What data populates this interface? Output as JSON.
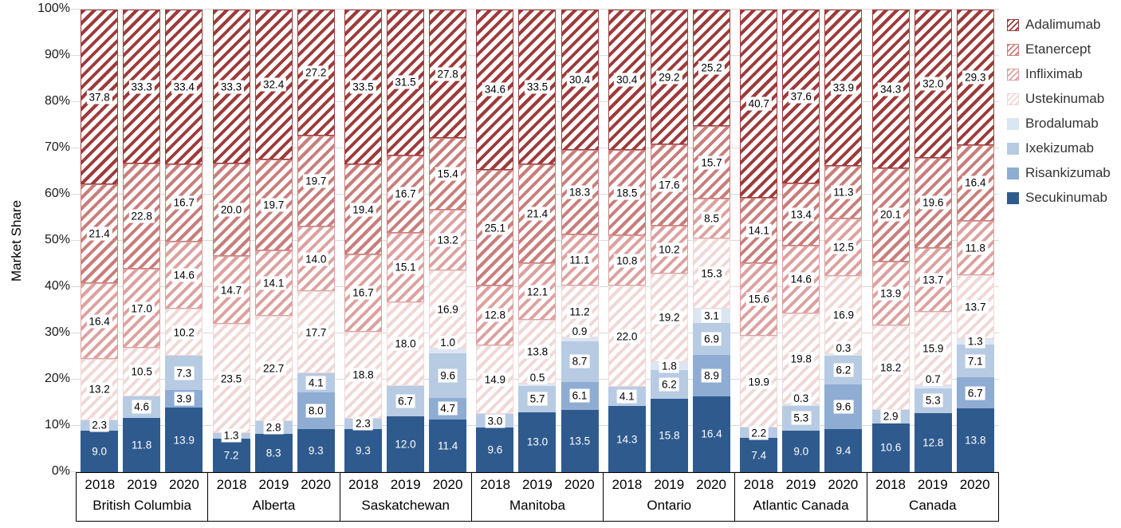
{
  "chart_data": {
    "type": "bar",
    "stacked": true,
    "orientation": "vertical",
    "ylabel": "Market Share",
    "ylim": [
      0,
      100
    ],
    "y_ticks": [
      "0%",
      "10%",
      "20%",
      "30%",
      "40%",
      "50%",
      "60%",
      "70%",
      "80%",
      "90%",
      "100%"
    ],
    "grid": "horizontal",
    "legend_position": "right",
    "legend": [
      "Adalimumab",
      "Etanercept",
      "Infliximab",
      "Ustekinumab",
      "Brodalumab",
      "Ixekizumab",
      "Risankizumab",
      "Secukinumab"
    ],
    "series_styles": {
      "Adalimumab": {
        "color": "#9e3b3b",
        "pattern": "hatch"
      },
      "Etanercept": {
        "color": "#c97e7b",
        "pattern": "hatch"
      },
      "Infliximab": {
        "color": "#dda19f",
        "pattern": "hatch"
      },
      "Ustekinumab": {
        "color": "#f0d8d7",
        "pattern": "hatch"
      },
      "Brodalumab": {
        "color": "#dce6f2",
        "pattern": "solid"
      },
      "Ixekizumab": {
        "color": "#b7cbe3",
        "pattern": "solid"
      },
      "Risankizumab": {
        "color": "#8facd3",
        "pattern": "solid"
      },
      "Secukinumab": {
        "color": "#2f5a8e",
        "pattern": "solid"
      }
    },
    "groups": [
      {
        "label": "British Columbia",
        "bars": [
          {
            "year": "2018",
            "segments": [
              [
                "Secukinumab",
                9.0
              ],
              [
                "Ixekizumab",
                2.3
              ],
              [
                "Ustekinumab",
                13.2
              ],
              [
                "Infliximab",
                16.4
              ],
              [
                "Etanercept",
                21.4
              ],
              [
                "Adalimumab",
                37.8
              ]
            ]
          },
          {
            "year": "2019",
            "segments": [
              [
                "Secukinumab",
                11.8
              ],
              [
                "Ixekizumab",
                4.6
              ],
              [
                "Ustekinumab",
                10.5
              ],
              [
                "Infliximab",
                17.0
              ],
              [
                "Etanercept",
                22.8
              ],
              [
                "Adalimumab",
                33.3
              ]
            ]
          },
          {
            "year": "2020",
            "segments": [
              [
                "Secukinumab",
                13.9
              ],
              [
                "Risankizumab",
                3.9
              ],
              [
                "Ixekizumab",
                7.3
              ],
              [
                "Ustekinumab",
                10.2
              ],
              [
                "Infliximab",
                14.6
              ],
              [
                "Etanercept",
                16.7
              ],
              [
                "Adalimumab",
                33.4
              ]
            ]
          }
        ]
      },
      {
        "label": "Alberta",
        "bars": [
          {
            "year": "2018",
            "segments": [
              [
                "Secukinumab",
                7.2
              ],
              [
                "Ixekizumab",
                1.3
              ],
              [
                "Ustekinumab",
                23.5
              ],
              [
                "Infliximab",
                14.7
              ],
              [
                "Etanercept",
                20.0
              ],
              [
                "Adalimumab",
                33.3
              ]
            ]
          },
          {
            "year": "2019",
            "segments": [
              [
                "Secukinumab",
                8.3
              ],
              [
                "Ixekizumab",
                2.8
              ],
              [
                "Ustekinumab",
                22.7
              ],
              [
                "Infliximab",
                14.1
              ],
              [
                "Etanercept",
                19.7
              ],
              [
                "Adalimumab",
                32.4
              ]
            ]
          },
          {
            "year": "2020",
            "segments": [
              [
                "Secukinumab",
                9.3
              ],
              [
                "Risankizumab",
                8.0
              ],
              [
                "Ixekizumab",
                4.1
              ],
              [
                "Ustekinumab",
                17.7
              ],
              [
                "Infliximab",
                14.0
              ],
              [
                "Etanercept",
                19.7
              ],
              [
                "Adalimumab",
                27.2
              ]
            ]
          }
        ]
      },
      {
        "label": "Saskatchewan",
        "bars": [
          {
            "year": "2018",
            "segments": [
              [
                "Secukinumab",
                9.3
              ],
              [
                "Ixekizumab",
                2.3
              ],
              [
                "Ustekinumab",
                18.8
              ],
              [
                "Infliximab",
                16.7
              ],
              [
                "Etanercept",
                19.4
              ],
              [
                "Adalimumab",
                33.5
              ]
            ]
          },
          {
            "year": "2019",
            "segments": [
              [
                "Secukinumab",
                12.0
              ],
              [
                "Ixekizumab",
                6.7
              ],
              [
                "Ustekinumab",
                18.0
              ],
              [
                "Infliximab",
                15.1
              ],
              [
                "Etanercept",
                16.7
              ],
              [
                "Adalimumab",
                31.5
              ]
            ]
          },
          {
            "year": "2020",
            "segments": [
              [
                "Secukinumab",
                11.4
              ],
              [
                "Risankizumab",
                4.7
              ],
              [
                "Ixekizumab",
                9.6
              ],
              [
                "Brodalumab",
                1.0
              ],
              [
                "Ustekinumab",
                16.9
              ],
              [
                "Infliximab",
                13.2
              ],
              [
                "Etanercept",
                15.4
              ],
              [
                "Adalimumab",
                27.8
              ]
            ]
          }
        ]
      },
      {
        "label": "Manitoba",
        "bars": [
          {
            "year": "2018",
            "segments": [
              [
                "Secukinumab",
                9.6
              ],
              [
                "Ixekizumab",
                3.0
              ],
              [
                "Ustekinumab",
                14.9
              ],
              [
                "Infliximab",
                12.8
              ],
              [
                "Etanercept",
                25.1
              ],
              [
                "Adalimumab",
                34.6
              ]
            ]
          },
          {
            "year": "2019",
            "segments": [
              [
                "Secukinumab",
                13.0
              ],
              [
                "Ixekizumab",
                5.7
              ],
              [
                "Brodalumab",
                0.5
              ],
              [
                "Ustekinumab",
                13.8
              ],
              [
                "Infliximab",
                12.1
              ],
              [
                "Etanercept",
                21.4
              ],
              [
                "Adalimumab",
                33.5
              ]
            ]
          },
          {
            "year": "2020",
            "segments": [
              [
                "Secukinumab",
                13.5
              ],
              [
                "Risankizumab",
                6.1
              ],
              [
                "Ixekizumab",
                8.7
              ],
              [
                "Brodalumab",
                0.9
              ],
              [
                "Ustekinumab",
                11.2
              ],
              [
                "Infliximab",
                11.1
              ],
              [
                "Etanercept",
                18.3
              ],
              [
                "Adalimumab",
                30.4
              ]
            ]
          }
        ]
      },
      {
        "label": "Ontario",
        "bars": [
          {
            "year": "2018",
            "segments": [
              [
                "Secukinumab",
                14.3
              ],
              [
                "Ixekizumab",
                4.1
              ],
              [
                "Ustekinumab",
                22.0
              ],
              [
                "Infliximab",
                10.8
              ],
              [
                "Etanercept",
                18.5
              ],
              [
                "Adalimumab",
                30.4
              ]
            ]
          },
          {
            "year": "2019",
            "segments": [
              [
                "Secukinumab",
                15.8
              ],
              [
                "Ixekizumab",
                6.2
              ],
              [
                "Brodalumab",
                1.8
              ],
              [
                "Ustekinumab",
                19.2
              ],
              [
                "Infliximab",
                10.2
              ],
              [
                "Etanercept",
                17.6
              ],
              [
                "Adalimumab",
                29.2
              ]
            ]
          },
          {
            "year": "2020",
            "segments": [
              [
                "Secukinumab",
                16.4
              ],
              [
                "Risankizumab",
                8.9
              ],
              [
                "Ixekizumab",
                6.9
              ],
              [
                "Brodalumab",
                3.1
              ],
              [
                "Ustekinumab",
                15.3
              ],
              [
                "Infliximab",
                8.5
              ],
              [
                "Etanercept",
                15.7
              ],
              [
                "Adalimumab",
                25.2
              ]
            ]
          }
        ]
      },
      {
        "label": "Atlantic Canada",
        "bars": [
          {
            "year": "2018",
            "segments": [
              [
                "Secukinumab",
                7.4
              ],
              [
                "Ixekizumab",
                2.2
              ],
              [
                "Ustekinumab",
                19.9
              ],
              [
                "Infliximab",
                15.6
              ],
              [
                "Etanercept",
                14.1
              ],
              [
                "Adalimumab",
                40.7
              ]
            ]
          },
          {
            "year": "2019",
            "segments": [
              [
                "Secukinumab",
                9.0
              ],
              [
                "Ixekizumab",
                5.3
              ],
              [
                "Brodalumab",
                0.3
              ],
              [
                "Ustekinumab",
                19.8
              ],
              [
                "Infliximab",
                14.6
              ],
              [
                "Etanercept",
                13.4
              ],
              [
                "Adalimumab",
                37.6
              ]
            ]
          },
          {
            "year": "2020",
            "segments": [
              [
                "Secukinumab",
                9.4
              ],
              [
                "Risankizumab",
                9.6
              ],
              [
                "Ixekizumab",
                6.2
              ],
              [
                "Brodalumab",
                0.3
              ],
              [
                "Ustekinumab",
                16.9
              ],
              [
                "Infliximab",
                12.5
              ],
              [
                "Etanercept",
                11.3
              ],
              [
                "Adalimumab",
                33.9
              ]
            ]
          }
        ]
      },
      {
        "label": "Canada",
        "bars": [
          {
            "year": "2018",
            "segments": [
              [
                "Secukinumab",
                10.6
              ],
              [
                "Ixekizumab",
                2.9
              ],
              [
                "Ustekinumab",
                18.2
              ],
              [
                "Infliximab",
                13.9
              ],
              [
                "Etanercept",
                20.1
              ],
              [
                "Adalimumab",
                34.3
              ]
            ]
          },
          {
            "year": "2019",
            "segments": [
              [
                "Secukinumab",
                12.8
              ],
              [
                "Ixekizumab",
                5.3
              ],
              [
                "Brodalumab",
                0.7
              ],
              [
                "Ustekinumab",
                15.9
              ],
              [
                "Infliximab",
                13.7
              ],
              [
                "Etanercept",
                19.6
              ],
              [
                "Adalimumab",
                32.0
              ]
            ]
          },
          {
            "year": "2020",
            "segments": [
              [
                "Secukinumab",
                13.8
              ],
              [
                "Risankizumab",
                6.7
              ],
              [
                "Ixekizumab",
                7.1
              ],
              [
                "Brodalumab",
                1.3
              ],
              [
                "Ustekinumab",
                13.7
              ],
              [
                "Infliximab",
                11.8
              ],
              [
                "Etanercept",
                16.4
              ],
              [
                "Adalimumab",
                29.3
              ]
            ]
          }
        ]
      }
    ]
  }
}
